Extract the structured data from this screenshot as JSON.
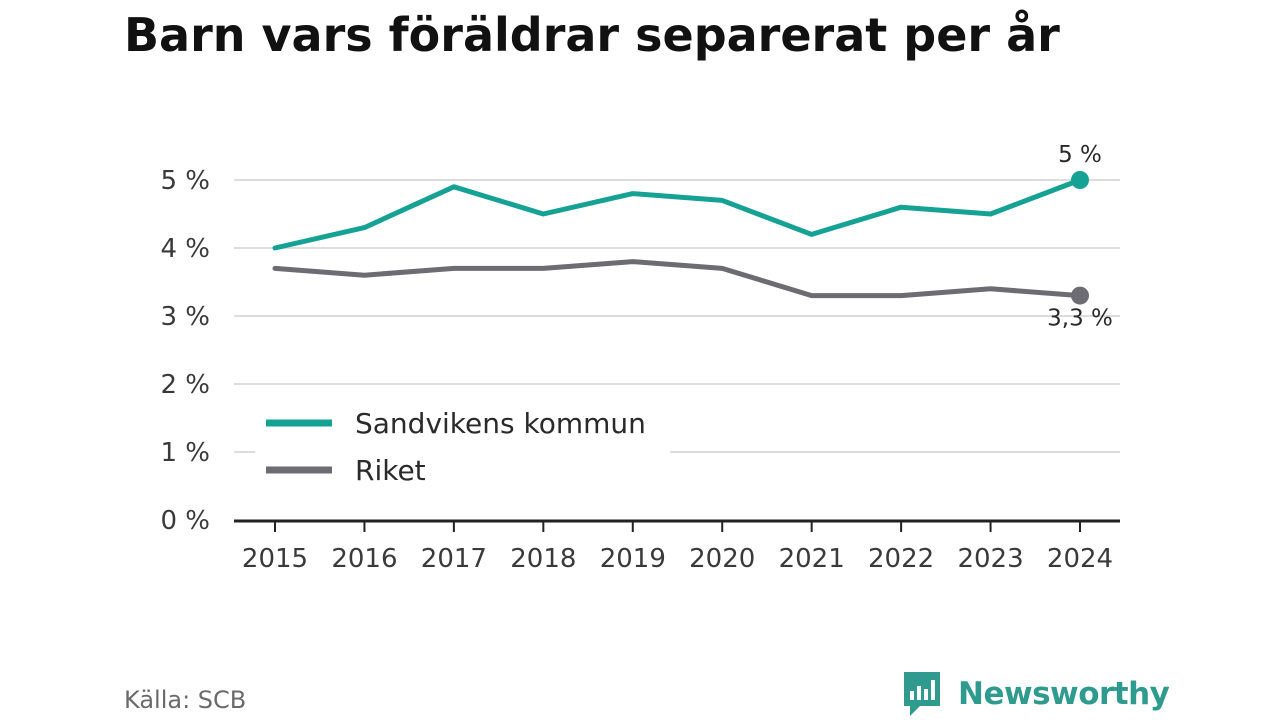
{
  "title": "Barn vars föräldrar separerat per år",
  "source": "Källa: SCB",
  "brand": {
    "name": "Newsworthy",
    "icon": "newsworthy-logo-icon",
    "color": "#2f9b8e"
  },
  "chart_data": {
    "type": "line",
    "title": "Barn vars föräldrar separerat per år",
    "x": [
      "2015",
      "2016",
      "2017",
      "2018",
      "2019",
      "2020",
      "2021",
      "2022",
      "2023",
      "2024"
    ],
    "series": [
      {
        "name": "Sandvikens kommun",
        "color": "#16a195",
        "values": [
          4.0,
          4.3,
          4.9,
          4.5,
          4.8,
          4.7,
          4.2,
          4.6,
          4.5,
          5.0
        ],
        "end_label": "5 %"
      },
      {
        "name": "Riket",
        "color": "#6d6c72",
        "values": [
          3.7,
          3.6,
          3.7,
          3.7,
          3.8,
          3.7,
          3.3,
          3.3,
          3.4,
          3.3
        ],
        "end_label": "3,3 %"
      }
    ],
    "yticks": [
      "0 %",
      "1 %",
      "2 %",
      "3 %",
      "4 %",
      "5 %"
    ],
    "ylim": [
      0,
      5
    ],
    "grid": true,
    "legend": "bottom-left"
  }
}
